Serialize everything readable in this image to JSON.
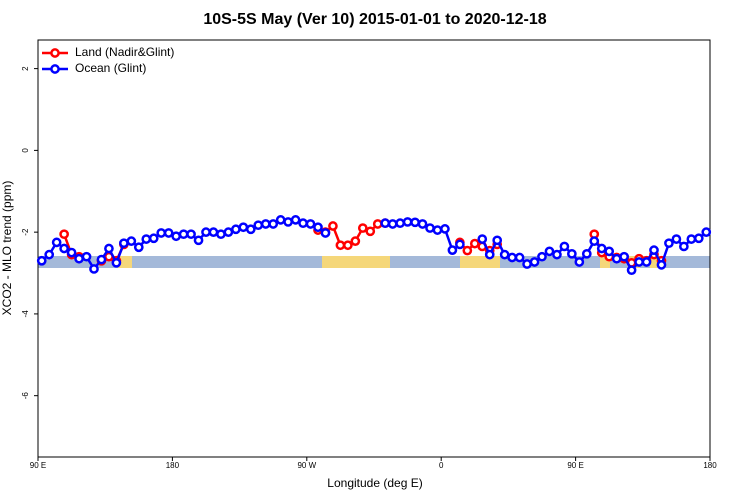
{
  "chart_data": {
    "type": "line",
    "title": "10S-5S May (Ver 10)   2015-01-01 to 2020-12-18",
    "x_label": "Longitude (deg E)",
    "y_label": "XCO2 - MLO trend (ppm)",
    "x": [
      92.5,
      97.5,
      102.5,
      107.5,
      112.5,
      117.5,
      122.5,
      127.5,
      132.5,
      137.5,
      142.5,
      147.5,
      152.5,
      157.5,
      162.5,
      167.5,
      172.5,
      177.5,
      182.5,
      187.5,
      192.5,
      197.5,
      202.5,
      207.5,
      212.5,
      217.5,
      222.5,
      227.5,
      232.5,
      237.5,
      242.5,
      247.5,
      252.5,
      257.5,
      262.5,
      267.5,
      272.5,
      277.5,
      282.5,
      287.5,
      292.5,
      297.5,
      302.5,
      307.5,
      312.5,
      317.5,
      322.5,
      327.5,
      332.5,
      337.5,
      342.5,
      347.5,
      352.5,
      357.5,
      362.5,
      367.5,
      372.5,
      377.5,
      382.5,
      387.5,
      392.5,
      397.5,
      402.5,
      407.5,
      412.5,
      417.5,
      422.5,
      427.5,
      432.5,
      437.5,
      442.5,
      447.5,
      452.5,
      457.5,
      462.5,
      467.5,
      472.5,
      477.5,
      482.5,
      487.5,
      492.5,
      497.5,
      502.5,
      507.5,
      512.5,
      517.5,
      522.5,
      527.5,
      532.5,
      537.5
    ],
    "series": [
      {
        "name": "Land (Nadir&Glint)",
        "color": "#ff0000",
        "values": [
          null,
          null,
          null,
          -2.05,
          -2.55,
          -2.6,
          null,
          null,
          -2.7,
          -2.6,
          -2.7,
          -2.3,
          null,
          null,
          null,
          null,
          null,
          null,
          null,
          null,
          null,
          null,
          null,
          null,
          null,
          null,
          null,
          null,
          null,
          null,
          null,
          null,
          null,
          null,
          null,
          null,
          null,
          -1.95,
          -2.0,
          -1.85,
          -2.32,
          -2.32,
          -2.22,
          -1.9,
          -1.98,
          -1.8,
          -1.78,
          null,
          null,
          null,
          null,
          null,
          null,
          null,
          null,
          null,
          -2.25,
          -2.45,
          -2.28,
          -2.35,
          -2.45,
          -2.3,
          null,
          null,
          null,
          null,
          null,
          null,
          null,
          null,
          null,
          null,
          null,
          null,
          -2.05,
          -2.5,
          -2.6,
          -2.62,
          -2.65,
          -2.75,
          -2.65,
          -2.7,
          -2.55,
          -2.7,
          null,
          null,
          null,
          null,
          null,
          null
        ]
      },
      {
        "name": "Ocean (Glint)",
        "color": "#0000ff",
        "values": [
          -2.7,
          -2.55,
          -2.25,
          -2.4,
          -2.5,
          -2.65,
          -2.6,
          -2.9,
          -2.67,
          -2.4,
          -2.75,
          -2.27,
          -2.22,
          -2.37,
          -2.17,
          -2.15,
          -2.02,
          -2.02,
          -2.1,
          -2.05,
          -2.05,
          -2.2,
          -2.0,
          -2.0,
          -2.05,
          -2.0,
          -1.93,
          -1.88,
          -1.93,
          -1.83,
          -1.8,
          -1.8,
          -1.7,
          -1.75,
          -1.7,
          -1.78,
          -1.8,
          -1.88,
          -2.02,
          null,
          null,
          null,
          null,
          null,
          null,
          null,
          -1.78,
          -1.8,
          -1.78,
          -1.75,
          -1.76,
          -1.8,
          -1.9,
          -1.95,
          -1.92,
          -2.44,
          -2.3,
          null,
          null,
          -2.17,
          -2.55,
          -2.2,
          -2.55,
          -2.62,
          -2.62,
          -2.78,
          -2.73,
          -2.6,
          -2.47,
          -2.55,
          -2.35,
          -2.53,
          -2.73,
          -2.53,
          -2.22,
          -2.4,
          -2.47,
          -2.65,
          -2.6,
          -2.93,
          -2.73,
          -2.73,
          -2.44,
          -2.8,
          -2.27,
          -2.17,
          -2.35,
          -2.17,
          -2.15,
          -2.0
        ]
      }
    ],
    "xlim": [
      90,
      540
    ],
    "xticks": [
      {
        "value": 90,
        "label": "90 E"
      },
      180,
      {
        "value": 270,
        "label": "90 W"
      },
      {
        "value": 360,
        "label": "0"
      },
      {
        "value": 450,
        "label": "90 E"
      },
      {
        "value": 540,
        "label": "180"
      }
    ],
    "ylim": [
      -7.5,
      2.7
    ],
    "yticks": [
      2,
      0,
      -2,
      -4,
      -6
    ],
    "legend": "top-left"
  }
}
